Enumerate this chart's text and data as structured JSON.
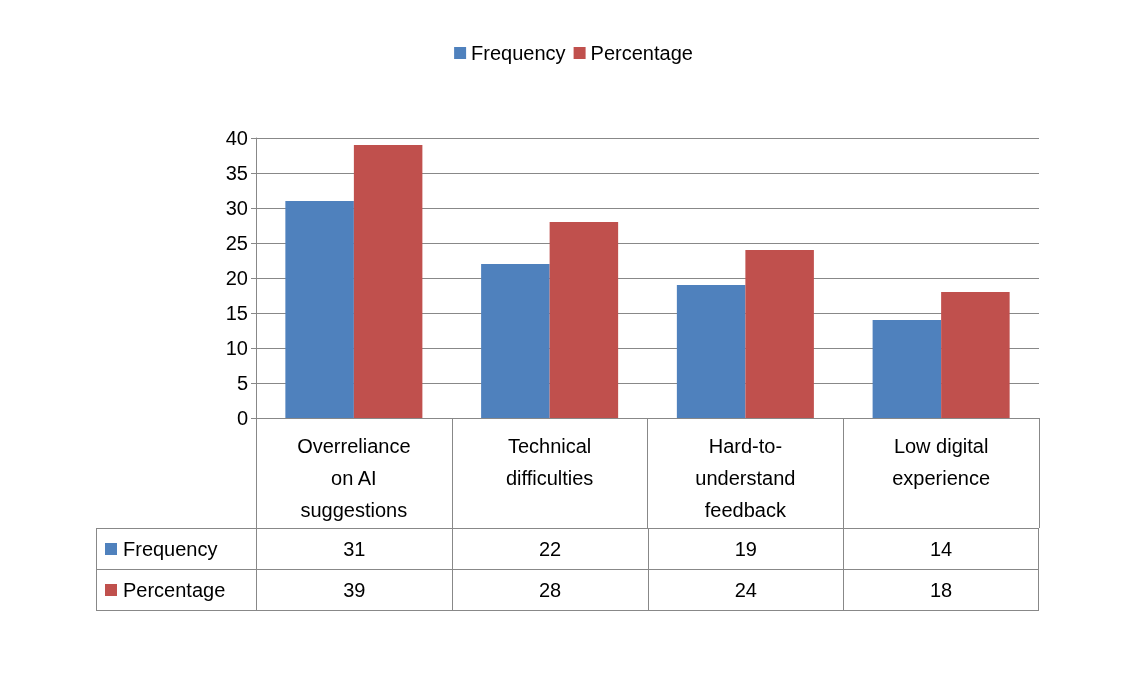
{
  "chart_data": {
    "type": "bar",
    "categories": [
      "Overreliance on AI suggestions",
      "Technical difficulties",
      "Hard-to-understand feedback",
      "Low digital experience"
    ],
    "series": [
      {
        "name": "Frequency",
        "color": "#4f81bd",
        "values": [
          31,
          22,
          19,
          14
        ]
      },
      {
        "name": "Percentage",
        "color": "#c0504d",
        "values": [
          39,
          28,
          24,
          18
        ]
      }
    ],
    "ylim": [
      0,
      40
    ],
    "yticks": [
      0,
      5,
      10,
      15,
      20,
      25,
      30,
      35,
      40
    ],
    "grid": "y",
    "legend": "top",
    "data_labels": true
  }
}
